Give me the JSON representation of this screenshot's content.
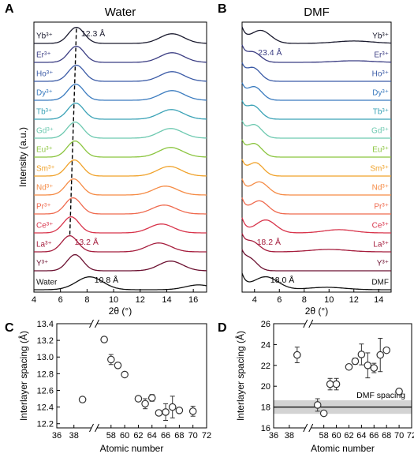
{
  "figure": {
    "panels": [
      "A",
      "B",
      "C",
      "D"
    ]
  },
  "chart_data": [
    {
      "panel": "A",
      "type": "line",
      "title": "Water",
      "xlabel": "2θ (°)",
      "ylabel": "Intensity (a.u.)",
      "xlim": [
        4,
        17
      ],
      "xticks": [
        4,
        6,
        8,
        10,
        12,
        14,
        16
      ],
      "traces": [
        {
          "name": "Yb³⁺",
          "color": "#1a1a2e",
          "peaks": [
            [
              7.2,
              1.0,
              0.6
            ],
            [
              14.4,
              0.6,
              0.9
            ]
          ]
        },
        {
          "name": "Er³⁺",
          "color": "#3b3d83",
          "peaks": [
            [
              7.2,
              1.0,
              0.6
            ],
            [
              14.4,
              0.6,
              0.9
            ]
          ]
        },
        {
          "name": "Ho³⁺",
          "color": "#3a5aa6",
          "peaks": [
            [
              7.2,
              1.0,
              0.6
            ],
            [
              14.4,
              0.6,
              0.9
            ]
          ]
        },
        {
          "name": "Dy³⁺",
          "color": "#3a7bbf",
          "peaks": [
            [
              7.15,
              1.0,
              0.6
            ],
            [
              14.4,
              0.6,
              0.9
            ]
          ]
        },
        {
          "name": "Tb³⁺",
          "color": "#3aa2b6",
          "peaks": [
            [
              7.15,
              1.0,
              0.6
            ],
            [
              14.35,
              0.6,
              0.9
            ]
          ]
        },
        {
          "name": "Gd³⁺",
          "color": "#6dc9b0",
          "peaks": [
            [
              7.1,
              1.0,
              0.6
            ],
            [
              14.3,
              0.6,
              0.9
            ]
          ]
        },
        {
          "name": "Eu³⁺",
          "color": "#8bc53f",
          "peaks": [
            [
              7.1,
              1.0,
              0.6
            ],
            [
              14.3,
              0.6,
              0.9
            ]
          ]
        },
        {
          "name": "Sm³⁺",
          "color": "#f0a22a",
          "peaks": [
            [
              7.05,
              1.0,
              0.6
            ],
            [
              14.2,
              0.6,
              0.9
            ]
          ]
        },
        {
          "name": "Nd³⁺",
          "color": "#f58b45",
          "peaks": [
            [
              7.0,
              1.0,
              0.6
            ],
            [
              13.9,
              0.55,
              0.9
            ]
          ]
        },
        {
          "name": "Pr³⁺",
          "color": "#ef6a4e",
          "peaks": [
            [
              6.95,
              1.0,
              0.6
            ],
            [
              13.8,
              0.55,
              0.9
            ]
          ]
        },
        {
          "name": "Ce³⁺",
          "color": "#d8344b",
          "peaks": [
            [
              6.8,
              1.0,
              0.6
            ],
            [
              13.6,
              0.55,
              0.9
            ]
          ]
        },
        {
          "name": "La³⁺",
          "color": "#a51d3d",
          "peaks": [
            [
              6.7,
              1.0,
              0.6
            ],
            [
              13.4,
              0.55,
              0.9
            ]
          ]
        },
        {
          "name": "Y³⁺",
          "color": "#6b1030",
          "peaks": [
            [
              7.1,
              1.0,
              0.6
            ],
            [
              14.3,
              0.6,
              0.9
            ]
          ]
        },
        {
          "name": "Water",
          "color": "#111111",
          "peaks": [
            [
              8.2,
              0.8,
              1.0
            ],
            [
              16.4,
              0.3,
              1.0
            ]
          ]
        }
      ],
      "dashed_line": [
        [
          7.2,
          0
        ],
        [
          6.7,
          11
        ]
      ],
      "annotations": [
        {
          "text": "12.3 Å",
          "trace": 0
        },
        {
          "text": "13.2 Å",
          "trace": 11
        },
        {
          "text": "10.8 Å",
          "trace": 13
        }
      ]
    },
    {
      "panel": "B",
      "type": "line",
      "title": "DMF",
      "xlabel": "2θ (°)",
      "ylabel": "",
      "xlim": [
        3,
        15
      ],
      "xticks": [
        4,
        6,
        8,
        10,
        12,
        14
      ],
      "traces": [
        {
          "name": "Yb³⁺",
          "color": "#1a1a2e",
          "peaks": [
            [
              4.5,
              0.8,
              0.8
            ],
            [
              12.0,
              0.15,
              1.5
            ]
          ]
        },
        {
          "name": "Er³⁺",
          "color": "#3b3d83",
          "peaks": [
            [
              3.9,
              0.6,
              0.6
            ],
            [
              12.0,
              0.1,
              1.5
            ]
          ]
        },
        {
          "name": "Ho³⁺",
          "color": "#3a5aa6",
          "peaks": [
            [
              3.9,
              0.8,
              0.6
            ]
          ]
        },
        {
          "name": "Dy³⁺",
          "color": "#3a7bbf",
          "peaks": [
            [
              4.0,
              0.8,
              0.6
            ]
          ]
        },
        {
          "name": "Tb³⁺",
          "color": "#3aa2b6",
          "peaks": [
            [
              3.9,
              0.8,
              0.6
            ]
          ]
        },
        {
          "name": "Gd³⁺",
          "color": "#6dc9b0",
          "peaks": [
            [
              4.0,
              0.8,
              0.6
            ]
          ]
        },
        {
          "name": "Eu³⁺",
          "color": "#8bc53f",
          "peaks": [
            [
              4.0,
              0.8,
              0.6
            ]
          ]
        },
        {
          "name": "Sm³⁺",
          "color": "#f0a22a",
          "peaks": [
            [
              4.1,
              0.8,
              0.6
            ]
          ]
        },
        {
          "name": "Nd³⁺",
          "color": "#f58b45",
          "peaks": [
            [
              4.4,
              0.8,
              0.7
            ]
          ]
        },
        {
          "name": "Pr³⁺",
          "color": "#ef6a4e",
          "peaks": [
            [
              4.4,
              0.8,
              0.7
            ]
          ]
        },
        {
          "name": "Ce³⁺",
          "color": "#d8344b",
          "peaks": [
            [
              4.9,
              0.8,
              0.8
            ],
            [
              10.8,
              0.2,
              1.2
            ]
          ]
        },
        {
          "name": "La³⁺",
          "color": "#a51d3d",
          "peaks": [
            [
              3.8,
              0.6,
              0.6
            ],
            [
              10.0,
              0.15,
              1.5
            ]
          ]
        },
        {
          "name": "Y³⁺",
          "color": "#6b1030",
          "peaks": [
            [
              3.6,
              0.7,
              0.6
            ]
          ]
        },
        {
          "name": "DMF",
          "color": "#111111",
          "peaks": [
            [
              4.9,
              0.8,
              1.0
            ],
            [
              9.8,
              0.15,
              1.5
            ]
          ]
        }
      ],
      "annotations": [
        {
          "text": "23.4 Å",
          "trace": 1
        },
        {
          "text": "18.2 Å",
          "trace": 11
        },
        {
          "text": "18.0 Å",
          "trace": 13
        }
      ]
    },
    {
      "panel": "C",
      "type": "scatter",
      "xlabel": "Atomic number",
      "ylabel": "Interlayer spacing (Å)",
      "ylim": [
        12.15,
        13.4
      ],
      "yticks": [
        12.2,
        12.4,
        12.6,
        12.8,
        13.0,
        13.2,
        13.4
      ],
      "xticks": [
        36,
        38,
        58,
        60,
        62,
        64,
        66,
        68,
        70,
        72
      ],
      "axis_break": true,
      "points": [
        {
          "x": 39,
          "y": 12.49,
          "err": 0.02
        },
        {
          "x": 57,
          "y": 13.21,
          "err": 0.03
        },
        {
          "x": 58,
          "y": 12.97,
          "err": 0.06
        },
        {
          "x": 59,
          "y": 12.9,
          "err": 0.03
        },
        {
          "x": 60,
          "y": 12.79,
          "err": 0.02
        },
        {
          "x": 62,
          "y": 12.5,
          "err": 0.03
        },
        {
          "x": 63,
          "y": 12.44,
          "err": 0.06
        },
        {
          "x": 64,
          "y": 12.51,
          "err": 0.04
        },
        {
          "x": 65,
          "y": 12.33,
          "err": 0.03
        },
        {
          "x": 66,
          "y": 12.34,
          "err": 0.1
        },
        {
          "x": 67,
          "y": 12.4,
          "err": 0.13
        },
        {
          "x": 68,
          "y": 12.36,
          "err": 0.03
        },
        {
          "x": 70,
          "y": 12.35,
          "err": 0.06
        }
      ]
    },
    {
      "panel": "D",
      "type": "scatter",
      "xlabel": "Atomic number",
      "ylabel": "Interlayer spacing (Å)",
      "ylim": [
        16,
        26
      ],
      "yticks": [
        16,
        18,
        20,
        22,
        24,
        26
      ],
      "xticks": [
        36,
        38,
        58,
        60,
        62,
        64,
        66,
        68,
        70,
        72
      ],
      "axis_break": true,
      "reference": {
        "label": "DMF spacing",
        "y": 18.0,
        "band": [
          17.35,
          18.65
        ]
      },
      "points": [
        {
          "x": 39,
          "y": 23.0,
          "err": 0.75
        },
        {
          "x": 57,
          "y": 18.2,
          "err": 0.6
        },
        {
          "x": 58,
          "y": 17.4,
          "err": 0.1
        },
        {
          "x": 59,
          "y": 20.2,
          "err": 0.55
        },
        {
          "x": 60,
          "y": 20.2,
          "err": 0.55
        },
        {
          "x": 62,
          "y": 21.85,
          "err": 0.15
        },
        {
          "x": 63,
          "y": 22.4,
          "err": 0.3
        },
        {
          "x": 64,
          "y": 23.05,
          "err": 1.0
        },
        {
          "x": 65,
          "y": 22.0,
          "err": 1.2
        },
        {
          "x": 66,
          "y": 21.75,
          "err": 0.45
        },
        {
          "x": 67,
          "y": 23.0,
          "err": 1.6
        },
        {
          "x": 68,
          "y": 23.45,
          "err": 0.15
        },
        {
          "x": 70,
          "y": 19.5,
          "err": 0.15
        }
      ]
    }
  ]
}
